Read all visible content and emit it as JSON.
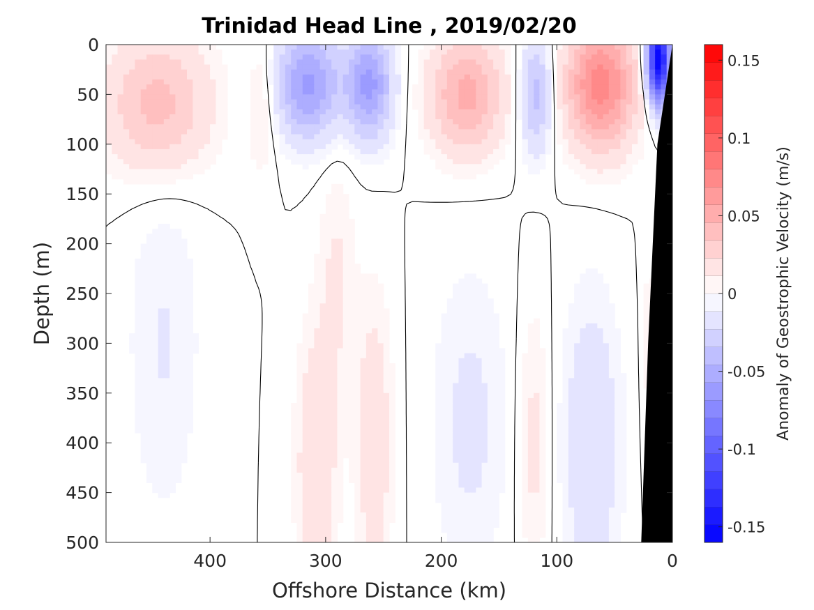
{
  "chart_data": {
    "type": "heatmap",
    "title": "Trinidad Head Line , 2019/02/20",
    "xlabel": "Offshore Distance (km)",
    "ylabel": "Depth (m)",
    "xlim": [
      490,
      0
    ],
    "x_reversed": true,
    "ylim": [
      0,
      500
    ],
    "y_reversed": true,
    "x_ticks": [
      400,
      300,
      200,
      100,
      0
    ],
    "x_tick_labels": [
      "400",
      "300",
      "200",
      "100",
      "0"
    ],
    "y_ticks": [
      0,
      50,
      100,
      150,
      200,
      250,
      300,
      350,
      400,
      450,
      500
    ],
    "y_tick_labels": [
      "0",
      "50",
      "100",
      "150",
      "200",
      "250",
      "300",
      "350",
      "400",
      "450",
      "500"
    ],
    "colorbar": {
      "label": "Anomaly of Geostrophic Velocity (m/s)",
      "clim": [
        -0.16,
        0.16
      ],
      "levels": 28,
      "ticks": [
        0.15,
        0.1,
        0.05,
        0,
        -0.05,
        -0.1,
        -0.15
      ],
      "tick_labels": [
        "0.15",
        "0.1",
        "0.05",
        "0",
        "-0.05",
        "-0.1",
        "-0.15"
      ],
      "colormap": "blue-white-red",
      "negative_color": "#0000ff",
      "zero_color": "#ffffff",
      "positive_color": "#ff0000"
    },
    "bathymetry": {
      "color": "#000000",
      "profile": [
        {
          "x": 0,
          "depth": 0
        },
        {
          "x": 13,
          "depth": 100
        },
        {
          "x": 21,
          "depth": 300
        },
        {
          "x": 27,
          "depth": 500
        }
      ]
    },
    "anomaly_features": [
      {
        "x_center": 445,
        "x_width": 45,
        "depth_center": 60,
        "depth_width": 70,
        "value": 0.04
      },
      {
        "x_center": 440,
        "x_width": 32,
        "depth_center": 300,
        "depth_width": 180,
        "value": -0.012
      },
      {
        "x_center": 355,
        "x_width": 12,
        "depth_center": 60,
        "depth_width": 70,
        "value": 0.015
      },
      {
        "x_center": 315,
        "x_width": 28,
        "depth_center": 40,
        "depth_width": 55,
        "value": -0.06
      },
      {
        "x_center": 308,
        "x_width": 18,
        "depth_center": 420,
        "depth_width": 140,
        "value": 0.022
      },
      {
        "x_center": 290,
        "x_width": 16,
        "depth_center": 230,
        "depth_width": 120,
        "value": 0.012
      },
      {
        "x_center": 262,
        "x_width": 20,
        "depth_center": 40,
        "depth_width": 55,
        "value": -0.06
      },
      {
        "x_center": 258,
        "x_width": 16,
        "depth_center": 400,
        "depth_width": 150,
        "value": 0.02
      },
      {
        "x_center": 178,
        "x_width": 32,
        "depth_center": 50,
        "depth_width": 60,
        "value": 0.05
      },
      {
        "x_center": 175,
        "x_width": 34,
        "depth_center": 380,
        "depth_width": 160,
        "value": -0.014
      },
      {
        "x_center": 118,
        "x_width": 14,
        "depth_center": 50,
        "depth_width": 60,
        "value": -0.04
      },
      {
        "x_center": 120,
        "x_width": 14,
        "depth_center": 400,
        "depth_width": 140,
        "value": 0.015
      },
      {
        "x_center": 62,
        "x_width": 30,
        "depth_center": 40,
        "depth_width": 65,
        "value": 0.075
      },
      {
        "x_center": 70,
        "x_width": 26,
        "depth_center": 400,
        "depth_width": 150,
        "value": -0.022
      },
      {
        "x_center": 12,
        "x_width": 10,
        "depth_center": 15,
        "depth_width": 45,
        "value": -0.16
      },
      {
        "x_center": 20,
        "x_width": 7,
        "depth_center": 300,
        "depth_width": 150,
        "value": 0.008
      }
    ]
  }
}
